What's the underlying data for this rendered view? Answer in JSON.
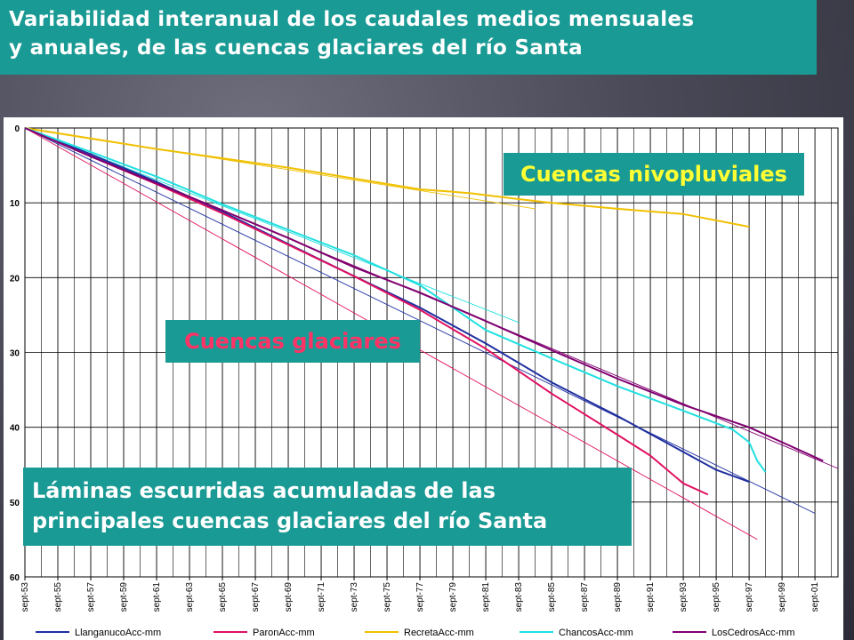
{
  "title": {
    "line1": "Variabilidad interanual de los caudales medios mensuales",
    "line2": "y anuales, de las cuencas glaciares del río Santa"
  },
  "annotations": {
    "nivopluviales": "Cuencas nivopluviales",
    "glaciares": "Cuencas glaciares",
    "laminas_line1": "Láminas escurridas acumuladas de las",
    "laminas_line2": "principales cuencas glaciares del río Santa"
  },
  "chart_data": {
    "type": "line",
    "title": "",
    "xlabel": "",
    "ylabel": "",
    "x_ticks": [
      "sept-53",
      "sept-55",
      "sept-57",
      "sept-59",
      "sept-61",
      "sept-63",
      "sept-65",
      "sept-67",
      "sept-69",
      "sept-71",
      "sept-73",
      "sept-75",
      "sept-77",
      "sept-79",
      "sept-81",
      "sept-83",
      "sept-85",
      "sept-87",
      "sept-89",
      "sept-91",
      "sept-93",
      "sept-95",
      "sept-97",
      "sept-99",
      "sept-01"
    ],
    "x_years": [
      1953,
      1955,
      1957,
      1959,
      1961,
      1963,
      1965,
      1967,
      1969,
      1971,
      1973,
      1975,
      1977,
      1979,
      1981,
      1983,
      1985,
      1987,
      1989,
      1991,
      1993,
      1995,
      1997,
      1999,
      2001
    ],
    "xlim": [
      1953,
      2002.4
    ],
    "y_ticks": [
      0,
      10,
      20,
      30,
      40,
      50,
      60
    ],
    "ylim": [
      0,
      60
    ],
    "y_inverted": true,
    "grid": true,
    "legend_position": "bottom",
    "series": [
      {
        "name": "LlanganucoAcc-mm",
        "color": "#1f2fa0",
        "points": [
          [
            1953,
            0
          ],
          [
            1957,
            3.5
          ],
          [
            1961,
            7.2
          ],
          [
            1965,
            11.2
          ],
          [
            1969,
            15.5
          ],
          [
            1973,
            19.8
          ],
          [
            1977,
            24.0
          ],
          [
            1981,
            28.8
          ],
          [
            1985,
            34.0
          ],
          [
            1989,
            38.5
          ],
          [
            1993,
            43.3
          ],
          [
            1995,
            45.7
          ],
          [
            1997,
            47.3
          ]
        ],
        "trend": [
          [
            1953,
            0
          ],
          [
            2001,
            51.5
          ]
        ]
      },
      {
        "name": "ParonAcc-mm",
        "color": "#e01060",
        "points": [
          [
            1953,
            0
          ],
          [
            1957,
            3.8
          ],
          [
            1961,
            7.5
          ],
          [
            1965,
            11.4
          ],
          [
            1969,
            15.6
          ],
          [
            1973,
            19.8
          ],
          [
            1977,
            24.3
          ],
          [
            1981,
            29.5
          ],
          [
            1985,
            35.5
          ],
          [
            1989,
            41.0
          ],
          [
            1991,
            43.8
          ],
          [
            1993,
            47.5
          ],
          [
            1994.5,
            49.0
          ]
        ],
        "trend": [
          [
            1953,
            0
          ],
          [
            1997.5,
            55.0
          ]
        ]
      },
      {
        "name": "RecretaAcc-mm",
        "color": "#f0c000",
        "points": [
          [
            1953,
            0
          ],
          [
            1961,
            2.8
          ],
          [
            1969,
            5.3
          ],
          [
            1977,
            8.2
          ],
          [
            1980,
            8.7
          ],
          [
            1983,
            9.5
          ],
          [
            1985,
            10.0
          ],
          [
            1989,
            10.8
          ],
          [
            1993,
            11.5
          ],
          [
            1997,
            13.2
          ]
        ],
        "trend": [
          [
            1953,
            0
          ],
          [
            1984,
            10.8
          ]
        ]
      },
      {
        "name": "ChancosAcc-mm",
        "color": "#20e0e0",
        "points": [
          [
            1953,
            0
          ],
          [
            1957,
            3.2
          ],
          [
            1961,
            6.5
          ],
          [
            1965,
            10.2
          ],
          [
            1969,
            13.6
          ],
          [
            1973,
            17.0
          ],
          [
            1977,
            21.0
          ],
          [
            1981,
            27.0
          ],
          [
            1985,
            30.8
          ],
          [
            1989,
            34.5
          ],
          [
            1993,
            37.8
          ],
          [
            1996,
            40.3
          ],
          [
            1997,
            42.0
          ],
          [
            1997.5,
            44.5
          ],
          [
            1998,
            46.0
          ]
        ],
        "trend": [
          [
            1953,
            0
          ],
          [
            1983,
            26.0
          ]
        ]
      },
      {
        "name": "LosCedrosAcc-mm",
        "color": "#800070",
        "points": [
          [
            1953,
            0
          ],
          [
            1957,
            3.8
          ],
          [
            1961,
            7.4
          ],
          [
            1965,
            11.0
          ],
          [
            1969,
            14.7
          ],
          [
            1973,
            18.6
          ],
          [
            1977,
            22.0
          ],
          [
            1981,
            25.8
          ],
          [
            1985,
            29.7
          ],
          [
            1989,
            33.5
          ],
          [
            1993,
            37.0
          ],
          [
            1997,
            40.0
          ],
          [
            2001,
            44.0
          ],
          [
            2001.5,
            44.5
          ]
        ],
        "trend": [
          [
            1953,
            0
          ],
          [
            2002.4,
            45.5
          ]
        ]
      }
    ]
  }
}
